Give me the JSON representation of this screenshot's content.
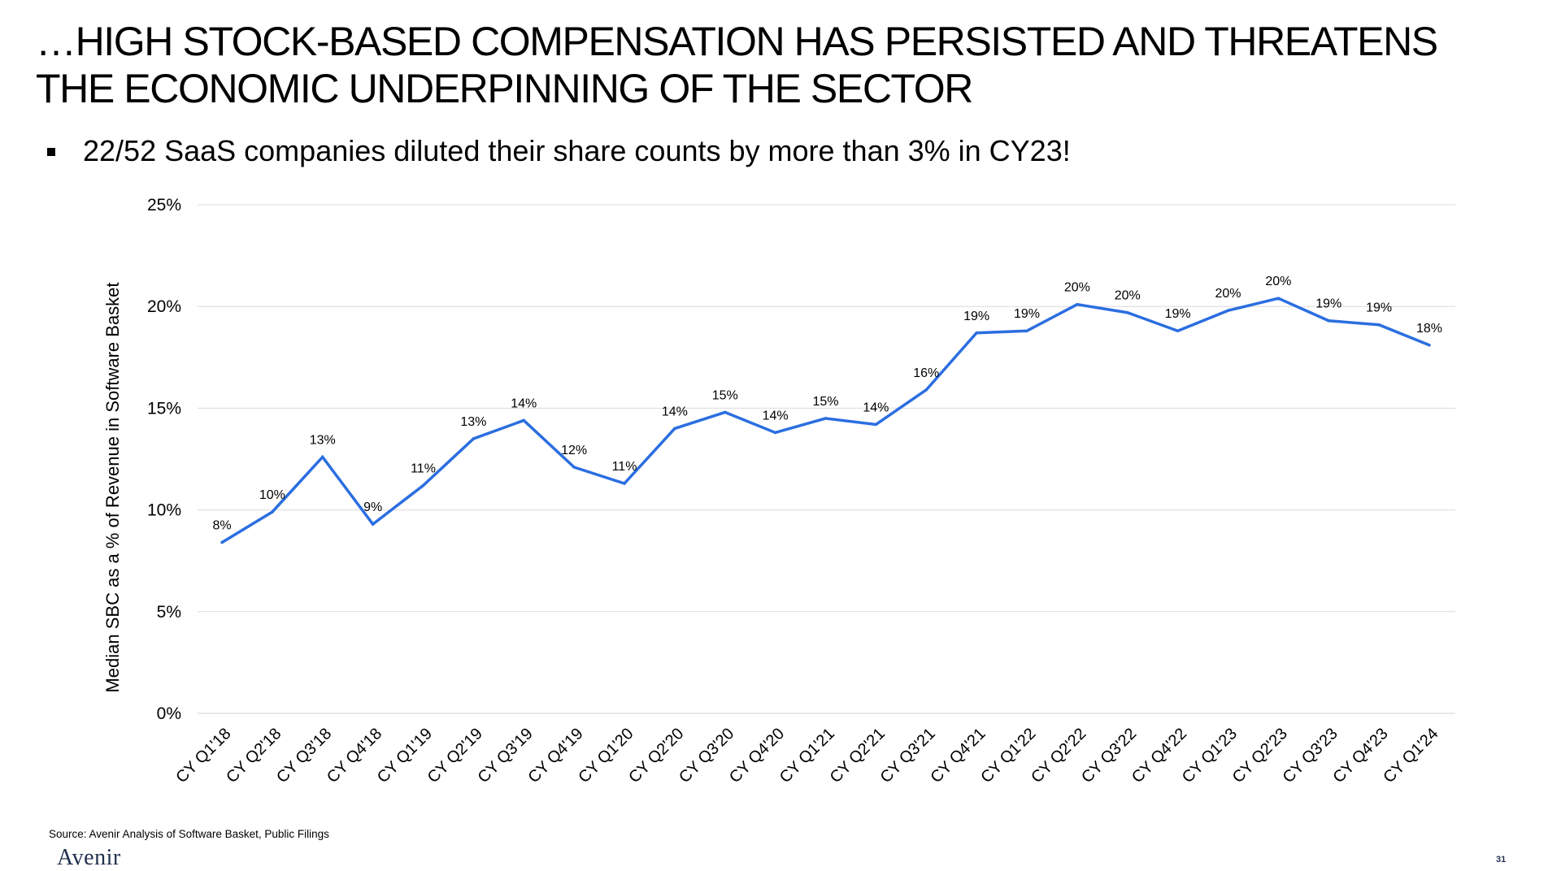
{
  "slide": {
    "title_line1": "…HIGH STOCK-BASED COMPENSATION HAS PERSISTED AND THREATENS",
    "title_line2": "THE ECONOMIC UNDERPINNING OF THE SECTOR",
    "bullet": "22/52 SaaS companies diluted their share counts by more than 3% in CY23!",
    "source": "Source: Avenir Analysis of Software Basket, Public Filings",
    "logo": "Avenir",
    "page_number": "31"
  },
  "chart_data": {
    "type": "line",
    "title": "",
    "xlabel": "",
    "ylabel": "Median SBC as a % of Revenue in Software Basket",
    "ylim": [
      0,
      25
    ],
    "y_ticks": [
      "0%",
      "5%",
      "10%",
      "15%",
      "20%",
      "25%"
    ],
    "grid": true,
    "line_color": "#2b6ee0",
    "categories": [
      "CY Q1'18",
      "CY Q2'18",
      "CY Q3'18",
      "CY Q4'18",
      "CY Q1'19",
      "CY Q2'19",
      "CY Q3'19",
      "CY Q4'19",
      "CY Q1'20",
      "CY Q2'20",
      "CY Q3'20",
      "CY Q4'20",
      "CY Q1'21",
      "CY Q2'21",
      "CY Q3'21",
      "CY Q4'21",
      "CY Q1'22",
      "CY Q2'22",
      "CY Q3'22",
      "CY Q4'22",
      "CY Q1'23",
      "CY Q2'23",
      "CY Q3'23",
      "CY Q4'23",
      "CY Q1'24"
    ],
    "values": [
      8.4,
      9.9,
      12.6,
      9.3,
      11.2,
      13.5,
      14.4,
      12.1,
      11.3,
      14.0,
      14.8,
      13.8,
      14.5,
      14.2,
      15.9,
      18.7,
      18.8,
      20.1,
      19.7,
      18.8,
      19.8,
      20.4,
      19.3,
      19.1,
      18.1
    ],
    "data_labels": [
      "8%",
      "10%",
      "13%",
      "9%",
      "11%",
      "13%",
      "14%",
      "12%",
      "11%",
      "14%",
      "15%",
      "14%",
      "15%",
      "14%",
      "16%",
      "19%",
      "19%",
      "20%",
      "20%",
      "19%",
      "20%",
      "20%",
      "19%",
      "19%",
      "18%"
    ]
  }
}
